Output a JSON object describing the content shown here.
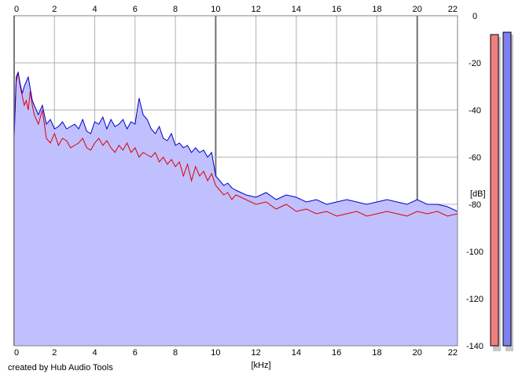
{
  "chart_data": {
    "type": "area",
    "x_unit": "[kHz]",
    "y_unit": "[dB]",
    "xlim": [
      0,
      22
    ],
    "ylim": [
      -140,
      0
    ],
    "x_ticks": [
      "0",
      "2",
      "4",
      "6",
      "8",
      "10",
      "12",
      "14",
      "16",
      "18",
      "20",
      "22"
    ],
    "y_ticks": [
      "0",
      "-20",
      "-40",
      "-60",
      "-80",
      "-100",
      "-120",
      "-140"
    ],
    "grid": true,
    "series": [
      {
        "color": "#e00000",
        "x": [
          0,
          0.1,
          0.2,
          0.3,
          0.4,
          0.5,
          0.6,
          0.7,
          0.8,
          0.9,
          1.0,
          1.2,
          1.4,
          1.6,
          1.8,
          2.0,
          2.2,
          2.4,
          2.6,
          2.8,
          3.0,
          3.2,
          3.4,
          3.6,
          3.8,
          4.0,
          4.2,
          4.4,
          4.6,
          4.8,
          5.0,
          5.2,
          5.4,
          5.6,
          5.8,
          6.0,
          6.2,
          6.4,
          6.6,
          6.8,
          7.0,
          7.2,
          7.4,
          7.6,
          7.8,
          8.0,
          8.2,
          8.4,
          8.6,
          8.8,
          9.0,
          9.2,
          9.4,
          9.6,
          9.8,
          10.0,
          10.2,
          10.4,
          10.6,
          10.8,
          11.0,
          11.5,
          12.0,
          12.5,
          13.0,
          13.5,
          14.0,
          14.5,
          15.0,
          15.5,
          16.0,
          16.5,
          17.0,
          17.5,
          18.0,
          18.5,
          19.0,
          19.5,
          20.0,
          20.5,
          21.0,
          21.5,
          22.0
        ],
        "y": [
          -50,
          -28,
          -24,
          -30,
          -34,
          -38,
          -36,
          -40,
          -32,
          -38,
          -42,
          -46,
          -40,
          -52,
          -54,
          -50,
          -55,
          -52,
          -53,
          -56,
          -55,
          -54,
          -52,
          -56,
          -57,
          -54,
          -52,
          -55,
          -53,
          -56,
          -58,
          -55,
          -57,
          -54,
          -58,
          -56,
          -60,
          -58,
          -59,
          -60,
          -58,
          -62,
          -60,
          -63,
          -61,
          -64,
          -62,
          -68,
          -63,
          -70,
          -64,
          -68,
          -66,
          -70,
          -67,
          -72,
          -74,
          -76,
          -75,
          -78,
          -76,
          -78,
          -80,
          -79,
          -82,
          -80,
          -83,
          -82,
          -84,
          -83,
          -85,
          -84,
          -83,
          -85,
          -84,
          -83,
          -84,
          -85,
          -83,
          -84,
          -83,
          -85,
          -84
        ]
      },
      {
        "color": "#0000cc",
        "x": [
          0,
          0.1,
          0.2,
          0.3,
          0.4,
          0.5,
          0.6,
          0.7,
          0.8,
          0.9,
          1.0,
          1.2,
          1.4,
          1.6,
          1.8,
          2.0,
          2.2,
          2.4,
          2.6,
          2.8,
          3.0,
          3.2,
          3.4,
          3.6,
          3.8,
          4.0,
          4.2,
          4.4,
          4.6,
          4.8,
          5.0,
          5.2,
          5.4,
          5.6,
          5.8,
          6.0,
          6.2,
          6.4,
          6.6,
          6.8,
          7.0,
          7.2,
          7.4,
          7.6,
          7.8,
          8.0,
          8.2,
          8.4,
          8.6,
          8.8,
          9.0,
          9.2,
          9.4,
          9.6,
          9.8,
          10.0,
          10.2,
          10.4,
          10.6,
          10.8,
          11.0,
          11.5,
          12.0,
          12.5,
          13.0,
          13.5,
          14.0,
          14.5,
          15.0,
          15.5,
          16.0,
          16.5,
          17.0,
          17.5,
          18.0,
          18.5,
          19.0,
          19.5,
          20.0,
          20.5,
          21.0,
          21.5,
          22.0
        ],
        "y": [
          -52,
          -26,
          -24,
          -29,
          -33,
          -30,
          -28,
          -26,
          -31,
          -36,
          -38,
          -42,
          -38,
          -46,
          -44,
          -48,
          -47,
          -45,
          -48,
          -47,
          -46,
          -48,
          -44,
          -49,
          -50,
          -45,
          -46,
          -43,
          -48,
          -44,
          -47,
          -46,
          -44,
          -48,
          -45,
          -46,
          -35,
          -42,
          -44,
          -48,
          -50,
          -47,
          -52,
          -53,
          -50,
          -55,
          -54,
          -56,
          -55,
          -58,
          -56,
          -58,
          -57,
          -60,
          -58,
          -68,
          -70,
          -72,
          -71,
          -73,
          -74,
          -76,
          -77,
          -75,
          -78,
          -76,
          -77,
          -79,
          -78,
          -80,
          -79,
          -78,
          -79,
          -80,
          -79,
          -78,
          -79,
          -80,
          -78,
          -80,
          -80,
          -81,
          -83
        ]
      }
    ],
    "level_meters": [
      {
        "color": "#f08080",
        "level_db": -8
      },
      {
        "color": "#8080f0",
        "level_db": -7
      }
    ]
  },
  "footer": {
    "credit": "created by Hub Audio Tools"
  }
}
